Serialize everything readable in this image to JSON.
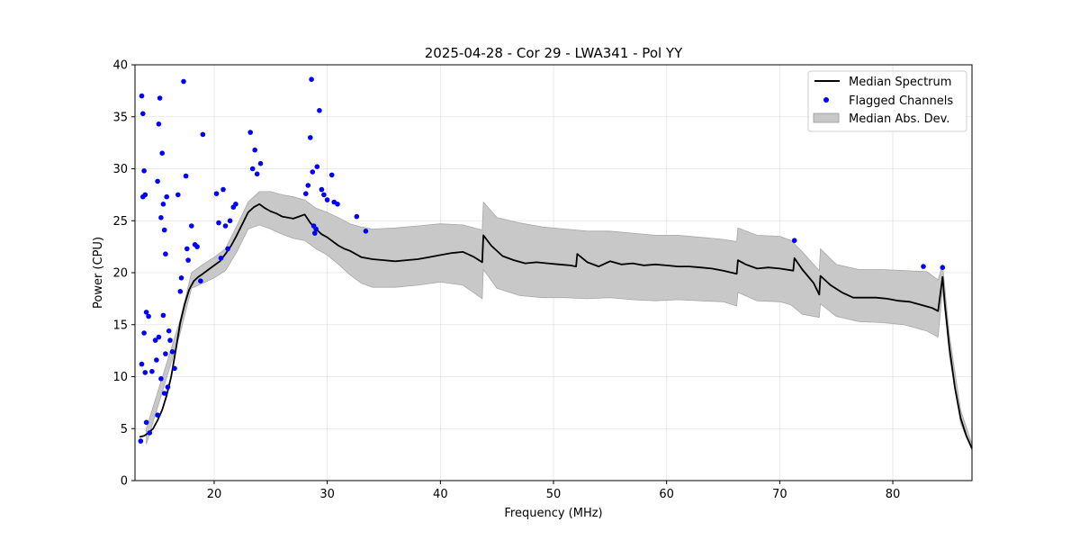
{
  "chart_data": {
    "type": "line",
    "title": "2025-04-28 - Cor 29 - LWA341 - Pol YY",
    "xlabel": "Frequency (MHz)",
    "ylabel": "Power (CPU)",
    "xlim": [
      13.0,
      87.0
    ],
    "ylim": [
      0,
      40
    ],
    "xticks": [
      20,
      30,
      40,
      50,
      60,
      70,
      80
    ],
    "yticks": [
      0,
      5,
      10,
      15,
      20,
      25,
      30,
      35,
      40
    ],
    "grid": true,
    "legend_position": "top-right",
    "legend": [
      {
        "label": "Median Spectrum",
        "kind": "line",
        "color": "#000000"
      },
      {
        "label": "Flagged Channels",
        "kind": "marker",
        "color": "#0000ff"
      },
      {
        "label": "Median Abs. Dev.",
        "kind": "patch",
        "color": "#c8c8c8"
      }
    ],
    "series": [
      {
        "name": "Median Spectrum",
        "color": "#000000",
        "x": [
          13.4,
          13.8,
          14.2,
          14.6,
          15.0,
          15.4,
          15.8,
          16.2,
          16.6,
          17.0,
          17.4,
          17.8,
          18.2,
          18.6,
          19.0,
          19.5,
          20.0,
          20.5,
          21.0,
          21.5,
          22.0,
          22.5,
          23.0,
          23.5,
          24.0,
          24.5,
          25.0,
          25.5,
          26.0,
          26.5,
          27.0,
          27.5,
          28.0,
          28.5,
          29.0,
          29.5,
          30.0,
          30.5,
          31.0,
          31.5,
          32.0,
          32.5,
          33.0,
          34.0,
          35.0,
          36.0,
          37.0,
          38.0,
          39.0,
          40.0,
          41.0,
          42.0,
          43.0,
          43.7,
          43.8,
          44.5,
          45.5,
          46.5,
          47.5,
          48.5,
          49.5,
          50.5,
          51.5,
          52.0,
          52.1,
          53.0,
          54.0,
          55.0,
          56.0,
          57.0,
          58.0,
          59.0,
          60.0,
          61.0,
          62.0,
          63.0,
          64.0,
          65.0,
          66.2,
          66.3,
          67.0,
          68.0,
          69.0,
          70.0,
          71.2,
          71.3,
          72.0,
          73.0,
          73.5,
          73.6,
          74.5,
          75.5,
          76.5,
          77.5,
          78.5,
          79.5,
          80.5,
          81.5,
          82.5,
          83.5,
          84.0,
          84.4,
          84.6,
          85.0,
          85.5,
          86.0,
          86.5,
          87.0
        ],
        "values": [
          4.2,
          4.3,
          4.6,
          5.0,
          5.8,
          6.8,
          8.2,
          10.0,
          12.5,
          15.2,
          17.0,
          18.4,
          19.2,
          19.6,
          19.9,
          20.3,
          20.7,
          21.1,
          21.8,
          22.6,
          23.6,
          24.7,
          25.8,
          26.3,
          26.6,
          26.2,
          25.9,
          25.7,
          25.4,
          25.3,
          25.2,
          25.4,
          25.6,
          24.8,
          24.2,
          23.7,
          23.4,
          23.0,
          22.6,
          22.3,
          22.1,
          21.8,
          21.5,
          21.3,
          21.2,
          21.1,
          21.2,
          21.3,
          21.5,
          21.7,
          21.9,
          22.0,
          21.5,
          21.0,
          23.6,
          22.6,
          21.6,
          21.2,
          20.9,
          21.0,
          20.9,
          20.8,
          20.7,
          20.6,
          21.8,
          21.0,
          20.6,
          21.1,
          20.8,
          20.9,
          20.7,
          20.8,
          20.7,
          20.6,
          20.6,
          20.5,
          20.4,
          20.2,
          19.9,
          21.2,
          20.8,
          20.4,
          20.5,
          20.4,
          20.2,
          21.4,
          20.3,
          19.0,
          17.9,
          19.7,
          18.8,
          18.1,
          17.6,
          17.6,
          17.6,
          17.5,
          17.3,
          17.2,
          16.9,
          16.6,
          16.3,
          19.6,
          17.0,
          12.8,
          8.9,
          6.0,
          4.3,
          3.1
        ]
      },
      {
        "name": "Median Abs. Dev. Upper",
        "x": [
          14.0,
          17.0,
          18.0,
          19.0,
          20.0,
          21.0,
          22.0,
          23.0,
          24.0,
          25.0,
          26.0,
          27.0,
          28.0,
          29.0,
          30.0,
          31.0,
          32.0,
          33.0,
          34.0,
          36.0,
          38.0,
          40.0,
          42.0,
          43.7,
          43.8,
          45.0,
          47.0,
          49.0,
          51.0,
          53.0,
          55.0,
          57.0,
          59.0,
          61.0,
          63.0,
          65.0,
          66.2,
          66.3,
          68.0,
          70.0,
          71.0,
          72.0,
          73.5,
          73.6,
          75.0,
          77.0,
          79.0,
          81.0,
          83.0,
          84.0,
          84.4,
          85.0,
          86.0,
          87.0
        ],
        "values": [
          5.0,
          15.5,
          20.0,
          20.8,
          21.5,
          22.3,
          24.5,
          26.8,
          27.8,
          27.8,
          27.5,
          27.3,
          27.0,
          26.2,
          25.8,
          25.3,
          24.7,
          24.4,
          24.2,
          24.3,
          24.5,
          24.7,
          24.6,
          24.1,
          26.8,
          25.3,
          24.8,
          24.4,
          24.2,
          24.0,
          24.0,
          23.8,
          23.6,
          23.6,
          23.4,
          23.2,
          23.0,
          24.3,
          23.6,
          23.5,
          23.1,
          22.0,
          20.2,
          22.3,
          20.8,
          20.3,
          20.3,
          20.2,
          20.1,
          19.3,
          20.8,
          14.0,
          6.8,
          3.5
        ]
      },
      {
        "name": "Median Abs. Dev. Lower",
        "x": [
          14.0,
          17.0,
          18.0,
          19.0,
          20.0,
          21.0,
          22.0,
          23.0,
          24.0,
          25.0,
          26.0,
          27.0,
          28.0,
          29.0,
          30.0,
          31.0,
          32.0,
          33.0,
          34.0,
          36.0,
          38.0,
          40.0,
          42.0,
          43.7,
          43.8,
          45.0,
          47.0,
          49.0,
          51.0,
          53.0,
          55.0,
          57.0,
          59.0,
          61.0,
          63.0,
          65.0,
          66.2,
          66.3,
          68.0,
          70.0,
          71.0,
          72.0,
          73.5,
          73.6,
          75.0,
          77.0,
          79.0,
          81.0,
          83.0,
          84.0,
          84.4,
          85.0,
          86.0,
          87.0
        ],
        "values": [
          3.5,
          14.2,
          18.5,
          19.0,
          19.5,
          20.2,
          22.0,
          24.2,
          24.6,
          24.2,
          23.7,
          23.3,
          23.1,
          22.3,
          21.7,
          20.8,
          19.8,
          19.0,
          18.6,
          18.6,
          18.8,
          19.1,
          18.8,
          17.5,
          20.3,
          18.5,
          17.8,
          17.6,
          17.6,
          17.5,
          17.6,
          17.4,
          17.3,
          17.4,
          17.3,
          17.2,
          16.8,
          18.1,
          17.3,
          17.2,
          16.9,
          16.0,
          15.7,
          17.0,
          15.8,
          15.3,
          15.2,
          15.0,
          14.4,
          13.8,
          18.4,
          12.0,
          5.5,
          2.9
        ]
      },
      {
        "name": "Flagged Channels",
        "color": "#0000ff",
        "x": [
          13.5,
          13.6,
          13.6,
          13.7,
          13.7,
          13.8,
          13.8,
          13.9,
          13.9,
          14.0,
          14.0,
          14.2,
          14.3,
          14.5,
          14.8,
          14.9,
          15.0,
          15.0,
          15.1,
          15.1,
          15.2,
          15.3,
          15.3,
          15.4,
          15.5,
          15.5,
          15.6,
          15.6,
          15.7,
          15.7,
          15.8,
          15.9,
          16.0,
          16.1,
          16.3,
          16.5,
          16.8,
          17.0,
          17.1,
          17.3,
          17.5,
          17.6,
          17.7,
          18.0,
          18.3,
          18.5,
          18.8,
          19.0,
          20.2,
          20.4,
          20.6,
          20.8,
          21.0,
          21.2,
          21.4,
          21.7,
          21.9,
          23.2,
          23.4,
          23.6,
          23.8,
          24.1,
          28.1,
          28.3,
          28.5,
          28.6,
          28.7,
          28.8,
          28.9,
          29.0,
          29.1,
          29.3,
          29.5,
          29.7,
          30.0,
          30.4,
          30.6,
          30.9,
          32.6,
          33.4,
          71.3,
          82.7,
          84.4
        ],
        "values": [
          3.8,
          37.0,
          11.2,
          35.3,
          27.3,
          29.8,
          14.2,
          27.5,
          10.4,
          16.2,
          5.6,
          15.8,
          4.6,
          10.5,
          13.5,
          11.6,
          28.8,
          6.3,
          34.3,
          13.8,
          36.8,
          25.3,
          9.8,
          31.5,
          26.6,
          15.9,
          24.1,
          8.4,
          21.8,
          12.2,
          27.3,
          9.0,
          14.4,
          13.5,
          12.4,
          10.8,
          27.5,
          18.2,
          19.5,
          38.4,
          29.3,
          22.3,
          21.2,
          24.5,
          22.7,
          22.5,
          19.2,
          33.3,
          27.6,
          24.8,
          21.4,
          28.0,
          24.5,
          22.3,
          25.0,
          26.3,
          26.6,
          33.5,
          30.0,
          31.8,
          29.5,
          30.5,
          27.6,
          28.4,
          33.0,
          38.6,
          29.7,
          24.5,
          23.8,
          24.2,
          30.2,
          35.6,
          28.0,
          27.5,
          27.0,
          29.4,
          26.8,
          26.6,
          25.4,
          24.0,
          23.1,
          20.6,
          20.5
        ]
      }
    ]
  }
}
